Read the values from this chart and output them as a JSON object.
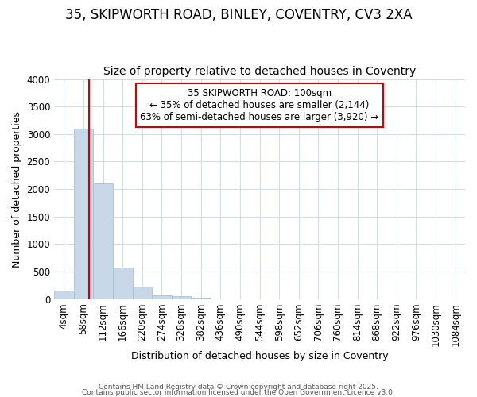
{
  "title_line1": "35, SKIPWORTH ROAD, BINLEY, COVENTRY, CV3 2XA",
  "title_line2": "Size of property relative to detached houses in Coventry",
  "xlabel": "Distribution of detached houses by size in Coventry",
  "ylabel": "Number of detached properties",
  "bar_labels": [
    "4sqm",
    "58sqm",
    "112sqm",
    "166sqm",
    "220sqm",
    "274sqm",
    "328sqm",
    "382sqm",
    "436sqm",
    "490sqm",
    "544sqm",
    "598sqm",
    "652sqm",
    "706sqm",
    "760sqm",
    "814sqm",
    "868sqm",
    "922sqm",
    "976sqm",
    "1030sqm",
    "1084sqm"
  ],
  "bar_values": [
    150,
    3100,
    2100,
    570,
    220,
    75,
    50,
    30,
    0,
    0,
    0,
    0,
    0,
    0,
    0,
    0,
    0,
    0,
    0,
    0,
    0
  ],
  "bar_color": "#c8d8e8",
  "bar_edgecolor": "#a8c0d8",
  "ylim": [
    0,
    4000
  ],
  "yticks": [
    0,
    500,
    1000,
    1500,
    2000,
    2500,
    3000,
    3500,
    4000
  ],
  "annotation_title": "35 SKIPWORTH ROAD: 100sqm",
  "annotation_line2": "← 35% of detached houses are smaller (2,144)",
  "annotation_line3": "63% of semi-detached houses are larger (3,920) →",
  "annotation_box_color": "#ffffff",
  "annotation_box_edgecolor": "#cc0000",
  "red_line_color": "#cc0000",
  "footer_line1": "Contains HM Land Registry data © Crown copyright and database right 2025.",
  "footer_line2": "Contains public sector information licensed under the Open Government Licence v3.0.",
  "background_color": "#ffffff",
  "grid_color": "#d0dce8",
  "title_fontsize": 12,
  "subtitle_fontsize": 10,
  "axis_label_fontsize": 9,
  "tick_fontsize": 8.5,
  "annotation_fontsize": 8.5
}
